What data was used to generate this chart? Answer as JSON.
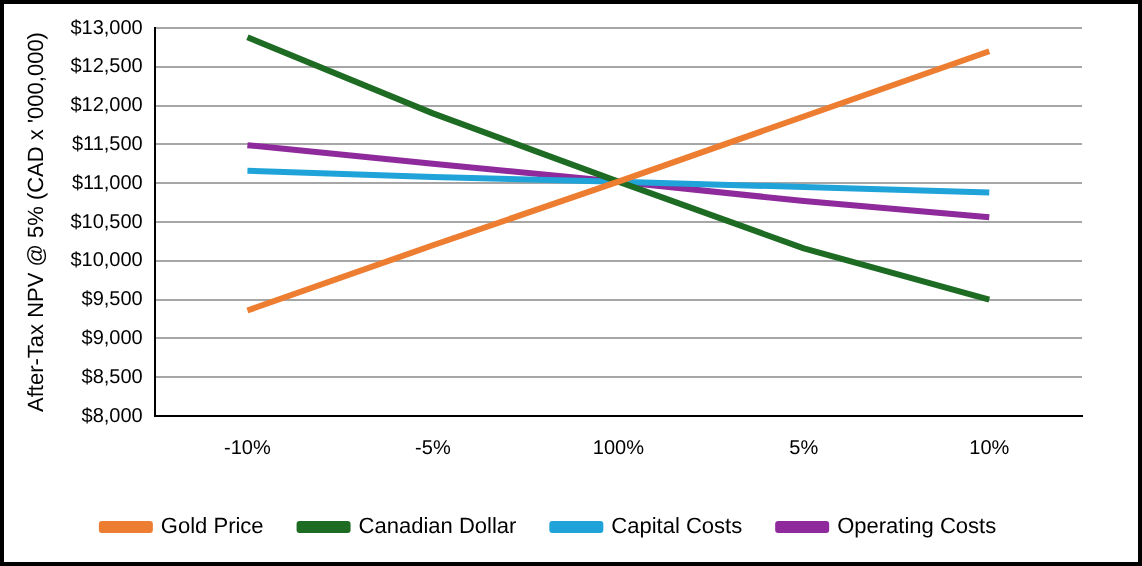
{
  "chart_data": {
    "type": "line",
    "ylabel": "After-Tax NPV @ 5% (CAD x '000,000)",
    "categories": [
      "-10%",
      "-5%",
      "100%",
      "5%",
      "10%"
    ],
    "series": [
      {
        "name": "Gold Price",
        "color": "#ed7d31",
        "values": [
          9360,
          10200,
          11020,
          11860,
          12700
        ]
      },
      {
        "name": "Canadian Dollar",
        "color": "#1e6b23",
        "values": [
          12880,
          11900,
          11020,
          10160,
          9500
        ]
      },
      {
        "name": "Capital Costs",
        "color": "#1fa3d9",
        "values": [
          11160,
          11080,
          11020,
          10950,
          10880
        ]
      },
      {
        "name": "Operating Costs",
        "color": "#8e2a9b",
        "values": [
          11490,
          11250,
          11020,
          10770,
          10560
        ]
      }
    ],
    "ylim": [
      8000,
      13000
    ],
    "yticks": [
      {
        "value": 8000,
        "label": "$8,000"
      },
      {
        "value": 8500,
        "label": "$8,500"
      },
      {
        "value": 9000,
        "label": "$9,000"
      },
      {
        "value": 9500,
        "label": "$9,500"
      },
      {
        "value": 10000,
        "label": "$10,000"
      },
      {
        "value": 10500,
        "label": "$10,500"
      },
      {
        "value": 11000,
        "label": "$11,000"
      },
      {
        "value": 11500,
        "label": "$11,500"
      },
      {
        "value": 12000,
        "label": "$12,000"
      },
      {
        "value": 12500,
        "label": "$12,500"
      },
      {
        "value": 13000,
        "label": "$13,000"
      }
    ],
    "grid": "y",
    "legend": "bottom",
    "marker": "none",
    "line_style": "solid"
  }
}
